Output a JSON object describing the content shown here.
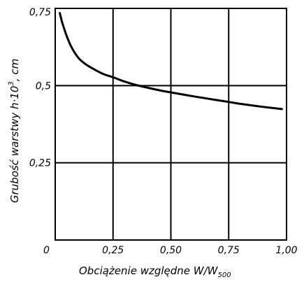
{
  "chart_data": {
    "type": "line",
    "xlabel_main": "Obciążenie względne W/W",
    "xlabel_sub": "500",
    "ylabel_main": "Grubość warstwy h·10",
    "ylabel_sup": "3",
    "ylabel_tail": ", cm",
    "x_ticks": [
      {
        "value": 0,
        "label": "0"
      },
      {
        "value": 0.25,
        "label": "0,25"
      },
      {
        "value": 0.5,
        "label": "0,50"
      },
      {
        "value": 0.75,
        "label": "0,75"
      },
      {
        "value": 1.0,
        "label": "1,00"
      }
    ],
    "y_ticks": [
      {
        "value": 0.25,
        "label": "0,25"
      },
      {
        "value": 0.5,
        "label": "0,5"
      },
      {
        "value": 0.75,
        "label": "0,75"
      }
    ],
    "xlim": [
      0,
      1.0
    ],
    "ylim": [
      0,
      0.75
    ],
    "grid": true,
    "series": [
      {
        "x": [
          0.02,
          0.03,
          0.05,
          0.07,
          0.1,
          0.13,
          0.17,
          0.21,
          0.25,
          0.3,
          0.35,
          0.4,
          0.45,
          0.5,
          0.6,
          0.7,
          0.75,
          0.8,
          0.9,
          0.98
        ],
        "y": [
          0.735,
          0.705,
          0.66,
          0.625,
          0.59,
          0.57,
          0.552,
          0.537,
          0.527,
          0.513,
          0.502,
          0.493,
          0.485,
          0.478,
          0.465,
          0.453,
          0.447,
          0.441,
          0.431,
          0.424
        ]
      }
    ],
    "colors": {
      "line": "#000000",
      "grid": "#000000",
      "background": "#ffffff"
    }
  }
}
